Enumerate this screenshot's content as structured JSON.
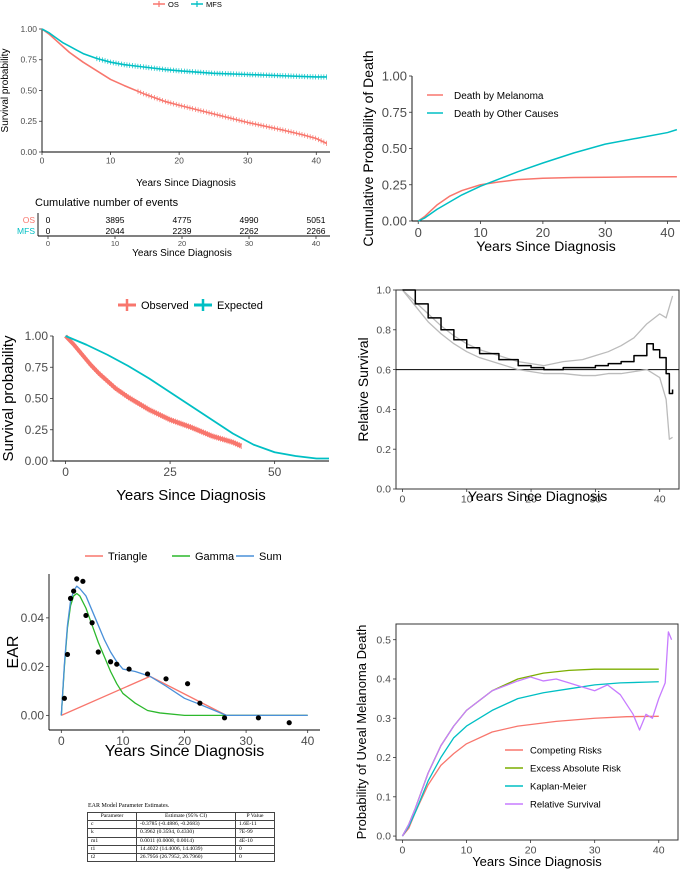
{
  "colors": {
    "red": "#F8766D",
    "teal": "#00BFC4",
    "green": "#7CAE00",
    "purple": "#C77CFF",
    "gamma_green": "#2CB82C",
    "sum_blue": "#4A90D9"
  },
  "chart_data": [
    {
      "id": "p1",
      "type": "line",
      "xlabel": "Years Since Diagnosis",
      "ylabel": "Survival probability",
      "xlim": [
        0,
        42
      ],
      "ylim": [
        0,
        1
      ],
      "xticks": [
        0,
        10,
        20,
        30,
        40
      ],
      "yticks": [
        "0.00",
        "0.25",
        "0.50",
        "0.75",
        "1.00"
      ],
      "legend": {
        "position": "top",
        "entries": [
          "OS",
          "MFS"
        ]
      },
      "series": [
        {
          "name": "OS",
          "color": "#F8766D",
          "x": [
            0,
            1,
            2,
            3,
            4,
            5,
            6,
            8,
            10,
            12,
            15,
            18,
            20,
            25,
            30,
            35,
            38,
            40,
            41.5
          ],
          "y": [
            1,
            0.96,
            0.91,
            0.86,
            0.81,
            0.77,
            0.73,
            0.66,
            0.59,
            0.54,
            0.47,
            0.41,
            0.38,
            0.31,
            0.24,
            0.18,
            0.14,
            0.11,
            0.07
          ]
        },
        {
          "name": "MFS",
          "color": "#00BFC4",
          "x": [
            0,
            1,
            2,
            3,
            4,
            5,
            6,
            8,
            10,
            12,
            15,
            18,
            20,
            25,
            30,
            35,
            40,
            41.5
          ],
          "y": [
            1,
            0.97,
            0.93,
            0.89,
            0.86,
            0.83,
            0.8,
            0.76,
            0.73,
            0.71,
            0.69,
            0.67,
            0.66,
            0.64,
            0.63,
            0.62,
            0.61,
            0.61
          ]
        }
      ]
    },
    {
      "id": "risk",
      "type": "table",
      "title": "Cumulative number of events",
      "xlabel": "Years Since Diagnosis",
      "xticks": [
        0,
        10,
        20,
        30,
        40
      ],
      "rows": [
        {
          "name": "OS",
          "values": [
            "0",
            "3895",
            "4775",
            "4990",
            "5051"
          ]
        },
        {
          "name": "MFS",
          "values": [
            "0",
            "2044",
            "2239",
            "2262",
            "2266"
          ]
        }
      ]
    },
    {
      "id": "p2",
      "type": "line",
      "xlabel": "Years Since Diagnosis",
      "ylabel": "Cumulative Probability of Death",
      "xlim": [
        -1,
        42
      ],
      "ylim": [
        0,
        1
      ],
      "xticks": [
        0,
        10,
        20,
        30,
        40
      ],
      "yticks": [
        "0.00",
        "0.25",
        "0.50",
        "0.75",
        "1.00"
      ],
      "legend": {
        "position": "top-left",
        "entries": [
          "Death by Melanoma",
          "Death by Other Causes"
        ]
      },
      "series": [
        {
          "name": "Death by Melanoma",
          "color": "#F8766D",
          "x": [
            0,
            1,
            2,
            3,
            5,
            7,
            10,
            13,
            16,
            20,
            25,
            30,
            35,
            41.5
          ],
          "y": [
            0,
            0.03,
            0.07,
            0.11,
            0.17,
            0.21,
            0.25,
            0.27,
            0.285,
            0.295,
            0.3,
            0.302,
            0.304,
            0.305
          ]
        },
        {
          "name": "Death by Other Causes",
          "color": "#00BFC4",
          "x": [
            0,
            1,
            2,
            3,
            5,
            7,
            10,
            13,
            16,
            20,
            25,
            30,
            35,
            40,
            41.5
          ],
          "y": [
            0,
            0.02,
            0.05,
            0.08,
            0.13,
            0.18,
            0.24,
            0.29,
            0.34,
            0.4,
            0.47,
            0.53,
            0.57,
            0.61,
            0.63
          ]
        }
      ]
    },
    {
      "id": "p3",
      "type": "line",
      "xlabel": "Years Since Diagnosis",
      "ylabel": "Survival probability",
      "xlim": [
        -3,
        63
      ],
      "ylim": [
        0,
        1
      ],
      "xticks": [
        0,
        25,
        50
      ],
      "yticks": [
        "0.00",
        "0.25",
        "0.50",
        "0.75",
        "1.00"
      ],
      "legend": {
        "position": "top",
        "entries": [
          "Observed",
          "Expected"
        ]
      },
      "series": [
        {
          "name": "Observed",
          "color": "#F8766D",
          "x": [
            0,
            2,
            4,
            6,
            8,
            10,
            12,
            15,
            18,
            20,
            25,
            30,
            35,
            40,
            42
          ],
          "y": [
            1,
            0.93,
            0.85,
            0.77,
            0.7,
            0.64,
            0.58,
            0.51,
            0.45,
            0.41,
            0.33,
            0.27,
            0.2,
            0.15,
            0.12
          ]
        },
        {
          "name": "Expected",
          "color": "#00BFC4",
          "x": [
            0,
            5,
            10,
            15,
            20,
            25,
            30,
            35,
            40,
            45,
            50,
            55,
            60,
            63
          ],
          "y": [
            1,
            0.93,
            0.85,
            0.76,
            0.66,
            0.55,
            0.44,
            0.33,
            0.22,
            0.13,
            0.07,
            0.04,
            0.02,
            0.02
          ]
        }
      ]
    },
    {
      "id": "p4",
      "type": "line",
      "xlabel": "Years Since Diagnosis",
      "ylabel": "Relative Survival",
      "xlim": [
        -1,
        43
      ],
      "ylim": [
        0,
        1
      ],
      "xticks": [
        0,
        10,
        20,
        30,
        40
      ],
      "yticks": [
        "0.0",
        "0.2",
        "0.4",
        "0.6",
        "0.8",
        "1.0"
      ],
      "hline": 0.6,
      "series": [
        {
          "name": "Relative survival",
          "color": "#000000",
          "x": [
            0,
            2,
            4,
            6,
            8,
            10,
            12,
            15,
            18,
            20,
            22,
            25,
            28,
            30,
            32,
            34,
            36,
            38,
            39,
            40,
            41,
            41.5,
            42
          ],
          "y": [
            1,
            0.93,
            0.86,
            0.8,
            0.75,
            0.71,
            0.68,
            0.65,
            0.62,
            0.61,
            0.6,
            0.61,
            0.61,
            0.62,
            0.63,
            0.64,
            0.67,
            0.73,
            0.7,
            0.66,
            0.58,
            0.48,
            0.5
          ]
        },
        {
          "name": "Upper CI",
          "color": "#BBBBBB",
          "x": [
            0,
            2,
            4,
            6,
            8,
            10,
            12,
            15,
            18,
            20,
            22,
            25,
            28,
            30,
            32,
            34,
            36,
            38,
            40,
            41,
            42
          ],
          "y": [
            1,
            0.94,
            0.88,
            0.82,
            0.77,
            0.73,
            0.7,
            0.67,
            0.64,
            0.63,
            0.62,
            0.64,
            0.65,
            0.67,
            0.69,
            0.72,
            0.76,
            0.83,
            0.88,
            0.86,
            0.97
          ]
        },
        {
          "name": "Lower CI",
          "color": "#BBBBBB",
          "x": [
            0,
            2,
            4,
            6,
            8,
            10,
            12,
            15,
            18,
            20,
            22,
            25,
            28,
            30,
            32,
            34,
            36,
            38,
            40,
            41,
            41.5,
            42
          ],
          "y": [
            1,
            0.92,
            0.84,
            0.78,
            0.73,
            0.69,
            0.66,
            0.63,
            0.6,
            0.59,
            0.58,
            0.58,
            0.57,
            0.57,
            0.58,
            0.58,
            0.59,
            0.6,
            0.56,
            0.45,
            0.25,
            0.26
          ]
        }
      ]
    },
    {
      "id": "p5",
      "type": "line",
      "xlabel": "Years Since Diagnosis",
      "ylabel": "EAR",
      "xlim": [
        -2,
        42
      ],
      "ylim": [
        -0.006,
        0.058
      ],
      "xticks": [
        0,
        10,
        20,
        30,
        40
      ],
      "yticks": [
        "0.00",
        "0.02",
        "0.04"
      ],
      "legend": {
        "position": "top",
        "entries": [
          "Triangle",
          "Gamma",
          "Sum"
        ]
      },
      "series": [
        {
          "name": "Triangle",
          "color": "#F8766D",
          "x": [
            0,
            14.4,
            26.8,
            40
          ],
          "y": [
            0,
            0.016,
            0,
            0
          ]
        },
        {
          "name": "Gamma",
          "color": "#2CB82C",
          "x": [
            0,
            0.5,
            1,
            1.5,
            2,
            2.5,
            3,
            4,
            5,
            6,
            7,
            8,
            9,
            10,
            12,
            14,
            16,
            20,
            25,
            40
          ],
          "y": [
            0,
            0.02,
            0.036,
            0.045,
            0.049,
            0.05,
            0.049,
            0.044,
            0.037,
            0.03,
            0.024,
            0.018,
            0.013,
            0.009,
            0.005,
            0.002,
            0.001,
            0,
            0,
            0
          ]
        },
        {
          "name": "Sum",
          "color": "#4A90D9",
          "x": [
            0,
            0.5,
            1,
            1.5,
            2,
            2.5,
            3,
            4,
            5,
            6,
            7,
            8,
            9,
            10,
            12,
            14.4,
            17,
            20,
            22,
            26.8,
            30,
            40
          ],
          "y": [
            0,
            0.021,
            0.037,
            0.047,
            0.051,
            0.053,
            0.052,
            0.049,
            0.043,
            0.037,
            0.031,
            0.026,
            0.022,
            0.019,
            0.018,
            0.016,
            0.012,
            0.007,
            0.005,
            0,
            0,
            0
          ]
        },
        {
          "name": "Observed points",
          "color": "#000000",
          "x": [
            0.5,
            1,
            1.5,
            2,
            2.5,
            3.5,
            4,
            5,
            6,
            8,
            9,
            11,
            14,
            17,
            20.5,
            22.5,
            26.5,
            32,
            37
          ],
          "y": [
            0.007,
            0.025,
            0.048,
            0.051,
            0.056,
            0.055,
            0.041,
            0.038,
            0.026,
            0.022,
            0.021,
            0.019,
            0.017,
            0.015,
            0.013,
            0.005,
            -0.001,
            -0.001,
            -0.003
          ]
        }
      ]
    },
    {
      "id": "p6",
      "type": "line",
      "xlabel": "Years Since Diagnosis",
      "ylabel": "Probability of Uveal Melanoma Death",
      "xlim": [
        -1,
        43
      ],
      "ylim": [
        -0.01,
        0.54
      ],
      "xticks": [
        0,
        10,
        20,
        30,
        40
      ],
      "yticks": [
        "0.0",
        "0.1",
        "0.2",
        "0.3",
        "0.4",
        "0.5"
      ],
      "legend": {
        "position": "bottom-right",
        "entries": [
          "Competing Risks",
          "Excess Absolute Risk",
          "Kaplan-Meier",
          "Relative Survival"
        ]
      },
      "series": [
        {
          "name": "Competing Risks",
          "color": "#F8766D",
          "x": [
            0,
            1,
            2,
            4,
            6,
            8,
            10,
            14,
            18,
            24,
            30,
            35,
            40
          ],
          "y": [
            0,
            0.02,
            0.06,
            0.13,
            0.18,
            0.21,
            0.235,
            0.265,
            0.28,
            0.292,
            0.3,
            0.304,
            0.305
          ]
        },
        {
          "name": "Excess Absolute Risk",
          "color": "#7CAE00",
          "x": [
            0,
            1,
            2,
            4,
            6,
            8,
            10,
            14,
            18,
            22,
            26,
            30,
            35,
            40
          ],
          "y": [
            0,
            0.03,
            0.07,
            0.16,
            0.23,
            0.28,
            0.32,
            0.37,
            0.4,
            0.415,
            0.422,
            0.425,
            0.425,
            0.425
          ]
        },
        {
          "name": "Kaplan-Meier",
          "color": "#00BFC4",
          "x": [
            0,
            1,
            2,
            4,
            6,
            8,
            10,
            14,
            18,
            22,
            26,
            30,
            34,
            38,
            40
          ],
          "y": [
            0,
            0.025,
            0.06,
            0.14,
            0.2,
            0.25,
            0.28,
            0.32,
            0.35,
            0.365,
            0.375,
            0.385,
            0.39,
            0.392,
            0.393
          ]
        },
        {
          "name": "Relative Survival",
          "color": "#C77CFF",
          "x": [
            0,
            1,
            2,
            4,
            6,
            8,
            10,
            14,
            18,
            20,
            22,
            24,
            26,
            28,
            30,
            32,
            34,
            36,
            37,
            38,
            39,
            40,
            41,
            41.5,
            42
          ],
          "y": [
            0,
            0.03,
            0.07,
            0.16,
            0.23,
            0.28,
            0.32,
            0.37,
            0.395,
            0.405,
            0.395,
            0.4,
            0.39,
            0.38,
            0.37,
            0.385,
            0.36,
            0.31,
            0.27,
            0.31,
            0.3,
            0.35,
            0.39,
            0.52,
            0.5
          ]
        }
      ]
    }
  ],
  "param_table": {
    "caption": "EAR Model Parameter Estimates.",
    "headers": [
      "Parameter",
      "Estimate (95% CI)",
      "P Value"
    ],
    "rows": [
      [
        "c",
        "-0.3785 (-0.4886, -0.2683)",
        "1.6E-11"
      ],
      [
        "k",
        "0.3962 (0.3594, 0.4330)",
        "7E-99"
      ],
      [
        "m1",
        "0.0011 (0.0008, 0.0014)",
        "4E-10"
      ],
      [
        "t1",
        "14.4022 (14.4006, 14.4039)",
        "0"
      ],
      [
        "t2",
        "26.7956 (26.7952, 26.7960)",
        "0"
      ]
    ]
  }
}
